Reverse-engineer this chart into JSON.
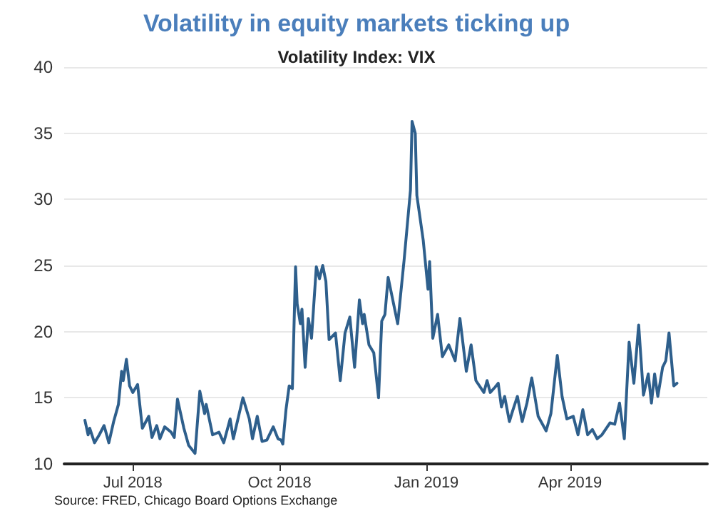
{
  "chart_data": {
    "type": "line",
    "title": "Volatility in equity markets ticking up",
    "subtitle": "Volatility Index: VIX",
    "annotations": [
      "Source: FRED, Chicago Board Options Exchange"
    ],
    "x": [
      "2018-06-01",
      "2018-06-03",
      "2018-06-04",
      "2018-06-07",
      "2018-06-10",
      "2018-06-13",
      "2018-06-16",
      "2018-06-19",
      "2018-06-22",
      "2018-06-24",
      "2018-06-25",
      "2018-06-27",
      "2018-06-29",
      "2018-07-01",
      "2018-07-04",
      "2018-07-07",
      "2018-07-11",
      "2018-07-13",
      "2018-07-16",
      "2018-07-18",
      "2018-07-21",
      "2018-07-25",
      "2018-07-27",
      "2018-07-29",
      "2018-08-02",
      "2018-08-05",
      "2018-08-09",
      "2018-08-12",
      "2018-08-15",
      "2018-08-16",
      "2018-08-20",
      "2018-08-24",
      "2018-08-27",
      "2018-08-31",
      "2018-09-02",
      "2018-09-08",
      "2018-09-12",
      "2018-09-14",
      "2018-09-17",
      "2018-09-20",
      "2018-09-23",
      "2018-09-27",
      "2018-09-30",
      "2018-10-02",
      "2018-10-03",
      "2018-10-05",
      "2018-10-07",
      "2018-10-09",
      "2018-10-11",
      "2018-10-12",
      "2018-10-14",
      "2018-10-15",
      "2018-10-17",
      "2018-10-19",
      "2018-10-21",
      "2018-10-24",
      "2018-10-26",
      "2018-10-28",
      "2018-10-30",
      "2018-11-01",
      "2018-11-05",
      "2018-11-08",
      "2018-11-11",
      "2018-11-14",
      "2018-11-17",
      "2018-11-20",
      "2018-11-22",
      "2018-11-23",
      "2018-11-26",
      "2018-11-29",
      "2018-12-02",
      "2018-12-04",
      "2018-12-06",
      "2018-12-08",
      "2018-12-14",
      "2018-12-18",
      "2018-12-22",
      "2018-12-23",
      "2018-12-25",
      "2018-12-26",
      "2018-12-30",
      "2019-01-02",
      "2019-01-03",
      "2019-01-05",
      "2019-01-08",
      "2019-01-11",
      "2019-01-15",
      "2019-01-19",
      "2019-01-22",
      "2019-01-26",
      "2019-01-29",
      "2019-02-01",
      "2019-02-06",
      "2019-02-08",
      "2019-02-10",
      "2019-02-13",
      "2019-02-15",
      "2019-02-17",
      "2019-02-19",
      "2019-02-22",
      "2019-02-24",
      "2019-02-27",
      "2019-03-02",
      "2019-03-05",
      "2019-03-08",
      "2019-03-12",
      "2019-03-17",
      "2019-03-20",
      "2019-03-24",
      "2019-03-27",
      "2019-03-30",
      "2019-04-03",
      "2019-04-06",
      "2019-04-09",
      "2019-04-12",
      "2019-04-15",
      "2019-04-18",
      "2019-04-21",
      "2019-04-26",
      "2019-04-29",
      "2019-05-02",
      "2019-05-05",
      "2019-05-08",
      "2019-05-11",
      "2019-05-14",
      "2019-05-17",
      "2019-05-20",
      "2019-05-22",
      "2019-05-24",
      "2019-05-26",
      "2019-05-29",
      "2019-05-31",
      "2019-06-02",
      "2019-06-05",
      "2019-06-07"
    ],
    "series": [
      {
        "color": "#2e5f8c",
        "values": [
          13.3,
          12.2,
          12.7,
          11.6,
          12.2,
          12.9,
          11.6,
          13.2,
          14.5,
          17.0,
          16.3,
          17.9,
          15.9,
          15.4,
          16.0,
          12.7,
          13.6,
          12.0,
          12.9,
          11.9,
          12.8,
          12.4,
          12.0,
          14.9,
          12.7,
          11.4,
          10.8,
          15.5,
          13.8,
          14.5,
          12.2,
          12.4,
          11.6,
          13.4,
          11.9,
          15.0,
          13.4,
          11.9,
          13.6,
          11.7,
          11.8,
          12.8,
          11.9,
          11.8,
          11.5,
          14.1,
          15.9,
          15.7,
          24.9,
          22.1,
          20.6,
          21.7,
          17.3,
          21.0,
          19.5,
          24.9,
          24.0,
          25.0,
          23.8,
          19.4,
          19.9,
          16.3,
          19.9,
          21.1,
          17.3,
          22.4,
          20.6,
          21.3,
          19.0,
          18.4,
          15.0,
          20.8,
          21.3,
          24.1,
          20.6,
          25.4,
          30.7,
          35.9,
          35.0,
          30.3,
          26.9,
          23.2,
          25.3,
          19.5,
          21.3,
          18.1,
          19.0,
          17.8,
          21.0,
          17.0,
          19.0,
          16.3,
          15.4,
          16.3,
          15.4,
          15.8,
          16.1,
          14.3,
          15.1,
          13.2,
          14.0,
          15.1,
          13.2,
          14.6,
          16.5,
          13.6,
          12.5,
          13.8,
          18.2,
          15.1,
          13.4,
          13.6,
          12.2,
          14.1,
          12.2,
          12.6,
          11.9,
          12.2,
          13.1,
          13.0,
          14.6,
          11.9,
          19.2,
          16.1,
          20.5,
          15.2,
          16.8,
          14.6,
          16.8,
          15.1,
          17.3,
          17.8,
          19.9,
          15.9,
          16.1
        ]
      }
    ],
    "xlim": [
      "2018-05-19",
      "2019-06-26"
    ],
    "xticks": [
      {
        "value": "2018-07-01",
        "label": "Jul 2018"
      },
      {
        "value": "2018-10-01",
        "label": "Oct 2018"
      },
      {
        "value": "2019-01-01",
        "label": "Jan 2019"
      },
      {
        "value": "2019-04-01",
        "label": "Apr 2019"
      }
    ],
    "ylim": [
      10,
      40
    ],
    "yticks": [
      10,
      15,
      20,
      25,
      30,
      35,
      40
    ],
    "grid": "y",
    "marker": "none",
    "line_style": "solid"
  }
}
